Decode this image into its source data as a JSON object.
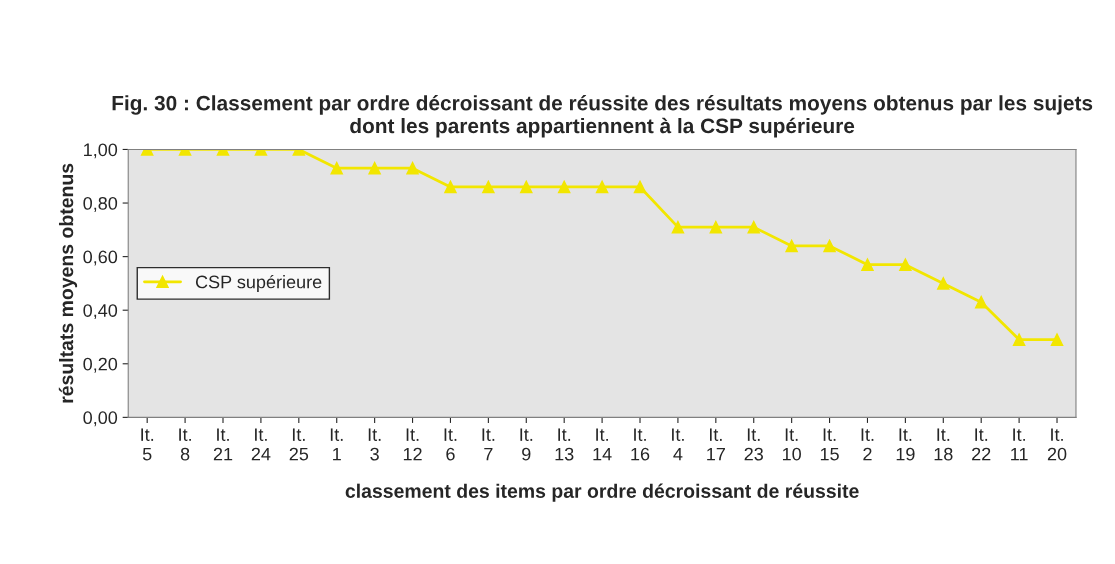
{
  "chart_data": {
    "type": "line",
    "title": "Fig. 30 : Classement par ordre décroissant de réussite des résultats moyens obtenus par les sujets dont les parents appartiennent à la CSP supérieure",
    "xlabel": "classement des items par ordre décroissant de réussite",
    "ylabel": "résultats moyens obtenus",
    "categories": [
      "It.\n5",
      "It.\n8",
      "It.\n21",
      "It.\n24",
      "It.\n25",
      "It.\n1",
      "It.\n3",
      "It.\n12",
      "It.\n6",
      "It.\n7",
      "It.\n9",
      "It.\n13",
      "It.\n14",
      "It.\n16",
      "It.\n4",
      "It.\n17",
      "It.\n23",
      "It.\n10",
      "It.\n15",
      "It.\n2",
      "It.\n19",
      "It.\n18",
      "It.\n22",
      "It.\n11",
      "It.\n20"
    ],
    "series": [
      {
        "name": "CSP supérieure",
        "color": "#f2e600",
        "values": [
          1.0,
          1.0,
          1.0,
          1.0,
          1.0,
          0.93,
          0.93,
          0.93,
          0.86,
          0.86,
          0.86,
          0.86,
          0.86,
          0.86,
          0.71,
          0.71,
          0.71,
          0.64,
          0.64,
          0.57,
          0.57,
          0.5,
          0.43,
          0.29,
          0.29
        ]
      }
    ],
    "ylim": [
      0,
      1
    ],
    "yticks": [
      {
        "value": 0,
        "label": "0,00"
      },
      {
        "value": 0.2,
        "label": "0,20"
      },
      {
        "value": 0.4,
        "label": "0,40"
      },
      {
        "value": 0.6,
        "label": "0,60"
      },
      {
        "value": 0.8,
        "label": "0,80"
      },
      {
        "value": 1,
        "label": "1,00"
      }
    ],
    "grid": false,
    "legend": "left",
    "marker": "triangle",
    "line_style": "solid"
  }
}
